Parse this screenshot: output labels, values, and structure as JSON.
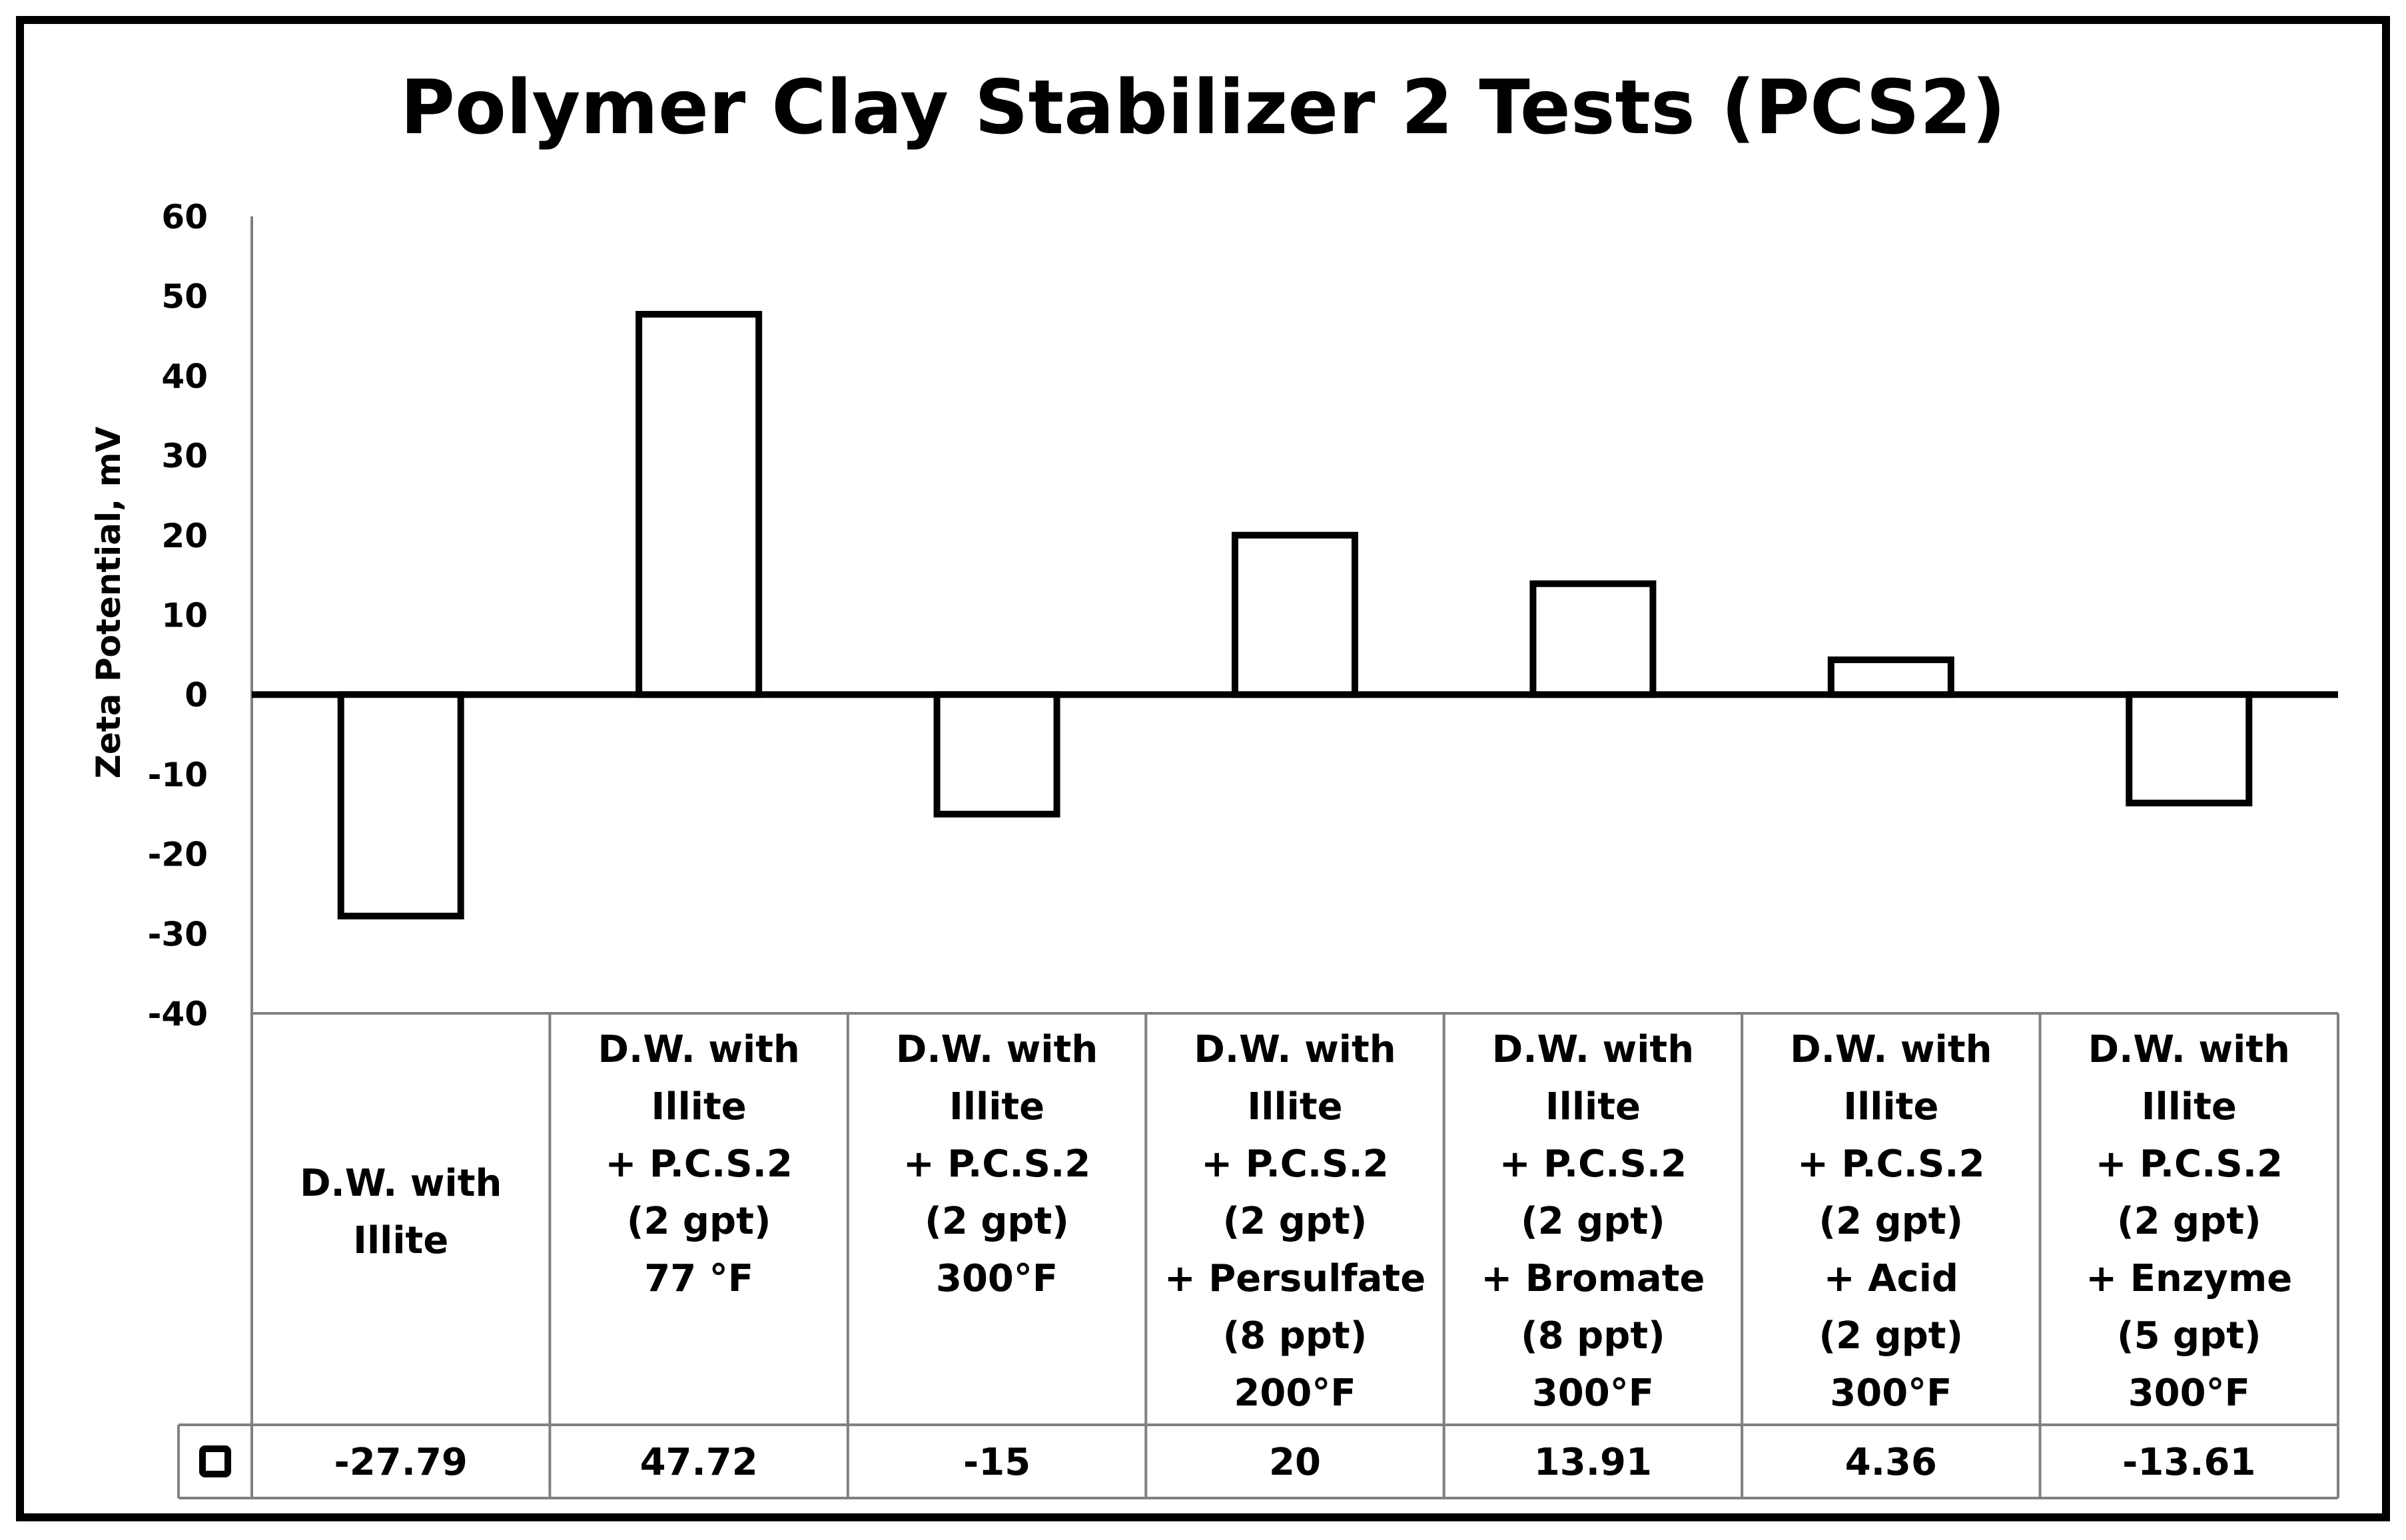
{
  "chart_data": {
    "type": "bar",
    "title": "Polymer Clay Stabilizer 2 Tests (PCS2)",
    "xlabel": "",
    "ylabel": "Zeta Potential, mV",
    "ylim": [
      -40,
      60
    ],
    "yticks": [
      60,
      50,
      40,
      30,
      20,
      10,
      0,
      -10,
      -20,
      -30,
      -40
    ],
    "grid": false,
    "legend": "none",
    "data_table": true,
    "categories": [
      [
        "D.W. with",
        "Illite"
      ],
      [
        "D.W. with",
        "Illite",
        "+ P.C.S.2",
        "(2 gpt)",
        "77 °F"
      ],
      [
        "D.W. with",
        "Illite",
        "+ P.C.S.2",
        "(2 gpt)",
        "300°F"
      ],
      [
        "D.W. with",
        "Illite",
        "+ P.C.S.2",
        "(2 gpt)",
        "+ Persulfate",
        "(8 ppt)",
        "200°F"
      ],
      [
        "D.W. with",
        "Illite",
        "+ P.C.S.2",
        "(2 gpt)",
        "+ Bromate",
        "(8 ppt)",
        "300°F"
      ],
      [
        "D.W. with",
        "Illite",
        "+ P.C.S.2",
        "(2 gpt)",
        "+ Acid",
        "(2 gpt)",
        "300°F"
      ],
      [
        "D.W. with",
        "Illite",
        "+ P.C.S.2",
        "(2 gpt)",
        "+ Enzyme",
        "(5 gpt)",
        "300°F"
      ]
    ],
    "series": [
      {
        "name": "",
        "values": [
          -27.79,
          47.72,
          -15,
          20,
          13.91,
          4.36,
          -13.61
        ],
        "labels": [
          "-27.79",
          "47.72",
          "-15",
          "20",
          "13.91",
          "4.36",
          "-13.61"
        ]
      }
    ]
  },
  "colors": {
    "bar_fill": "#ffffff",
    "bar_stroke": "#000000",
    "axis": "#000000",
    "table_grid": "#808080",
    "frame": "#000000",
    "background": "#ffffff"
  }
}
